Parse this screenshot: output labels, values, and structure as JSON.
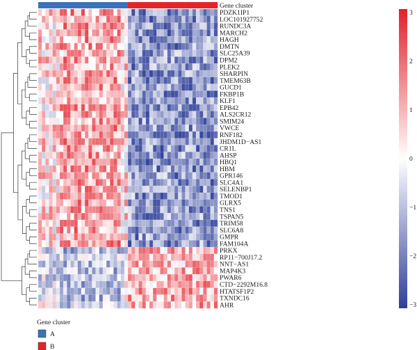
{
  "chart_data": {
    "type": "heatmap",
    "annotation_label": "Gene cluster",
    "sample_clusters": [
      "A",
      "A",
      "A",
      "A",
      "A",
      "A",
      "A",
      "A",
      "A",
      "A",
      "A",
      "A",
      "A",
      "A",
      "A",
      "A",
      "A",
      "A",
      "A",
      "A",
      "A",
      "A",
      "A",
      "A",
      "A",
      "B",
      "B",
      "B",
      "B",
      "B",
      "B",
      "B",
      "B",
      "B",
      "B",
      "B",
      "B",
      "B",
      "B",
      "B",
      "B",
      "B",
      "B",
      "B",
      "B",
      "B",
      "B",
      "B",
      "B",
      "B"
    ],
    "genes": [
      "PDZK1IP1",
      "LOC101927752",
      "RUNDC3A",
      "MARCH2",
      "HAGH",
      "DMTN",
      "SLC25A39",
      "DPM2",
      "PLEK2",
      "SHARPIN",
      "TMEM63B",
      "GUCD1",
      "FKBP1B",
      "KLF1",
      "EPB42",
      "ALS2CR12",
      "SMIM24",
      "VWCE",
      "RNF182",
      "JHDM1D−AS1",
      "CR1L",
      "AHSP",
      "HBQ1",
      "HBM",
      "GPR146",
      "SLC4A1",
      "SELENBP1",
      "TMOD1",
      "GLRX5",
      "TNS1",
      "TSPAN5",
      "TRIM58",
      "SLC6A8",
      "GMPR",
      "FAM104A",
      "PRKX",
      "RP11−700J17.2",
      "NNT−AS1",
      "MAP4K3",
      "PWAR6",
      "CTD−2292M16.8",
      "HTATSF1P2",
      "TXNDC16",
      "AHR"
    ],
    "colorbar": {
      "min": -3,
      "max": 3,
      "ticks": [
        "3",
        "2",
        "1",
        "0",
        "−1",
        "−2",
        "−3"
      ],
      "low_color": "#2e3f99",
      "mid_color": "#ffffff",
      "high_color": "#e3202a"
    },
    "legend": {
      "title": "Gene cluster",
      "items": [
        {
          "label": "A",
          "color": "#3b72b9"
        },
        {
          "label": "B",
          "color": "#e5232a"
        }
      ]
    }
  }
}
